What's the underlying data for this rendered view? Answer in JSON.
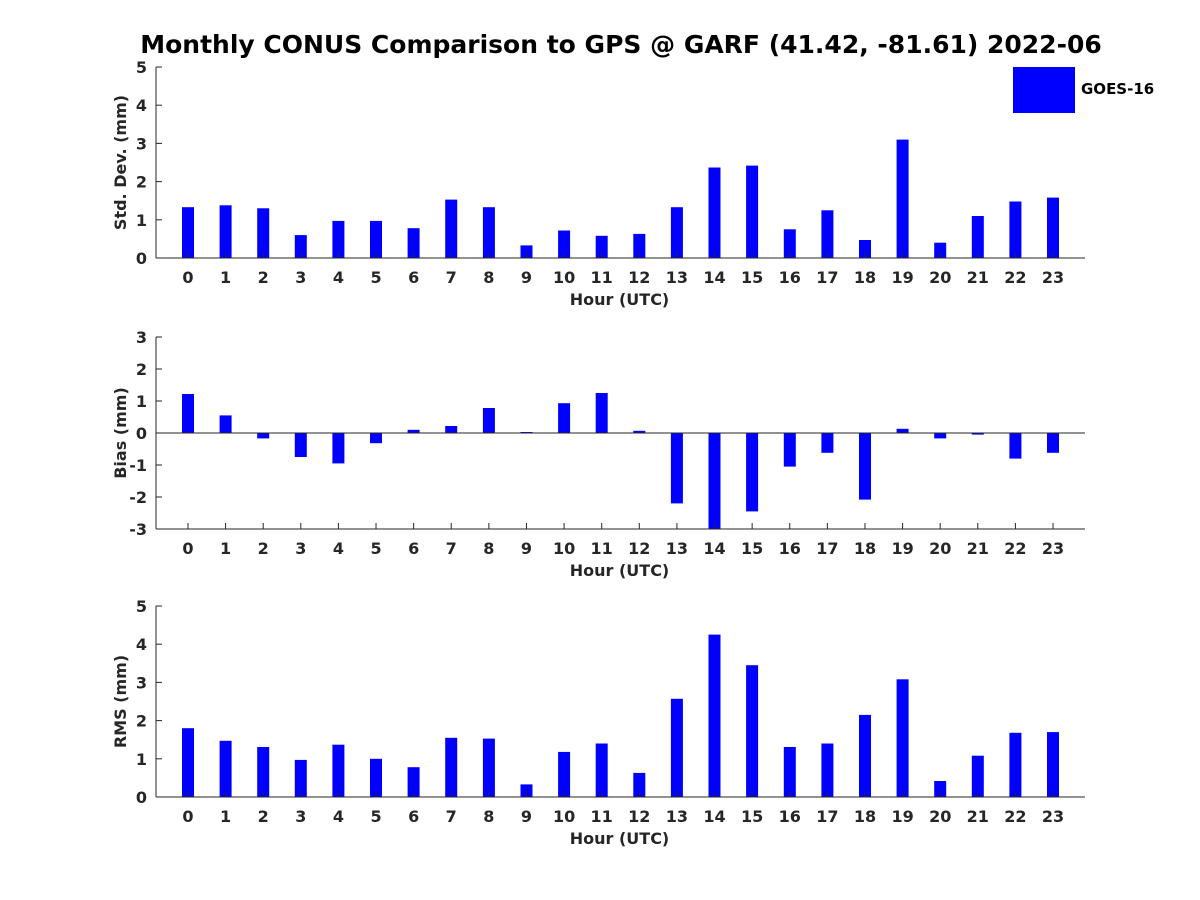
{
  "figure": {
    "title": "Monthly CONUS Comparison to GPS @ GARF (41.42, -81.61) 2022-06",
    "legend": [
      {
        "label": "GOES-16",
        "color": "#0000ff",
        "placement": "top-right"
      }
    ]
  },
  "chart_data": [
    {
      "type": "bar",
      "series_name": "GOES-16",
      "color": "#0000ff",
      "xlabel": "Hour (UTC)",
      "ylabel": "Std. Dev. (mm)",
      "categories": [
        "0",
        "1",
        "2",
        "3",
        "4",
        "5",
        "6",
        "7",
        "8",
        "9",
        "10",
        "11",
        "12",
        "13",
        "14",
        "15",
        "16",
        "17",
        "18",
        "19",
        "20",
        "21",
        "22",
        "23"
      ],
      "values": [
        1.33,
        1.38,
        1.3,
        0.6,
        0.97,
        0.97,
        0.78,
        1.53,
        1.33,
        0.33,
        0.72,
        0.58,
        0.63,
        1.33,
        2.37,
        2.42,
        0.75,
        1.25,
        0.47,
        3.1,
        0.4,
        1.1,
        1.48,
        1.58
      ],
      "ylim": [
        0,
        5
      ],
      "yticks": [
        0,
        1,
        2,
        3,
        4,
        5
      ],
      "grid": false
    },
    {
      "type": "bar",
      "series_name": "GOES-16",
      "color": "#0000ff",
      "xlabel": "Hour (UTC)",
      "ylabel": "Bias (mm)",
      "categories": [
        "0",
        "1",
        "2",
        "3",
        "4",
        "5",
        "6",
        "7",
        "8",
        "9",
        "10",
        "11",
        "12",
        "13",
        "14",
        "15",
        "16",
        "17",
        "18",
        "19",
        "20",
        "21",
        "22",
        "23"
      ],
      "values": [
        1.22,
        0.55,
        -0.17,
        -0.75,
        -0.95,
        -0.32,
        0.1,
        0.22,
        0.78,
        0.03,
        0.93,
        1.25,
        0.07,
        -2.2,
        -3.0,
        -2.45,
        -1.05,
        -0.62,
        -2.08,
        0.13,
        -0.17,
        -0.05,
        -0.8,
        -0.62
      ],
      "ylim": [
        -3,
        3
      ],
      "yticks": [
        -3,
        -2,
        -1,
        0,
        1,
        2,
        3
      ],
      "grid": false
    },
    {
      "type": "bar",
      "series_name": "GOES-16",
      "color": "#0000ff",
      "xlabel": "Hour (UTC)",
      "ylabel": "RMS (mm)",
      "categories": [
        "0",
        "1",
        "2",
        "3",
        "4",
        "5",
        "6",
        "7",
        "8",
        "9",
        "10",
        "11",
        "12",
        "13",
        "14",
        "15",
        "16",
        "17",
        "18",
        "19",
        "20",
        "21",
        "22",
        "23"
      ],
      "values": [
        1.8,
        1.47,
        1.31,
        0.97,
        1.37,
        1.0,
        0.78,
        1.55,
        1.53,
        0.33,
        1.18,
        1.4,
        0.63,
        2.57,
        4.25,
        3.45,
        1.31,
        1.4,
        2.15,
        3.08,
        0.42,
        1.08,
        1.68,
        1.7
      ],
      "ylim": [
        0,
        5
      ],
      "yticks": [
        0,
        1,
        2,
        3,
        4,
        5
      ],
      "grid": false
    }
  ]
}
